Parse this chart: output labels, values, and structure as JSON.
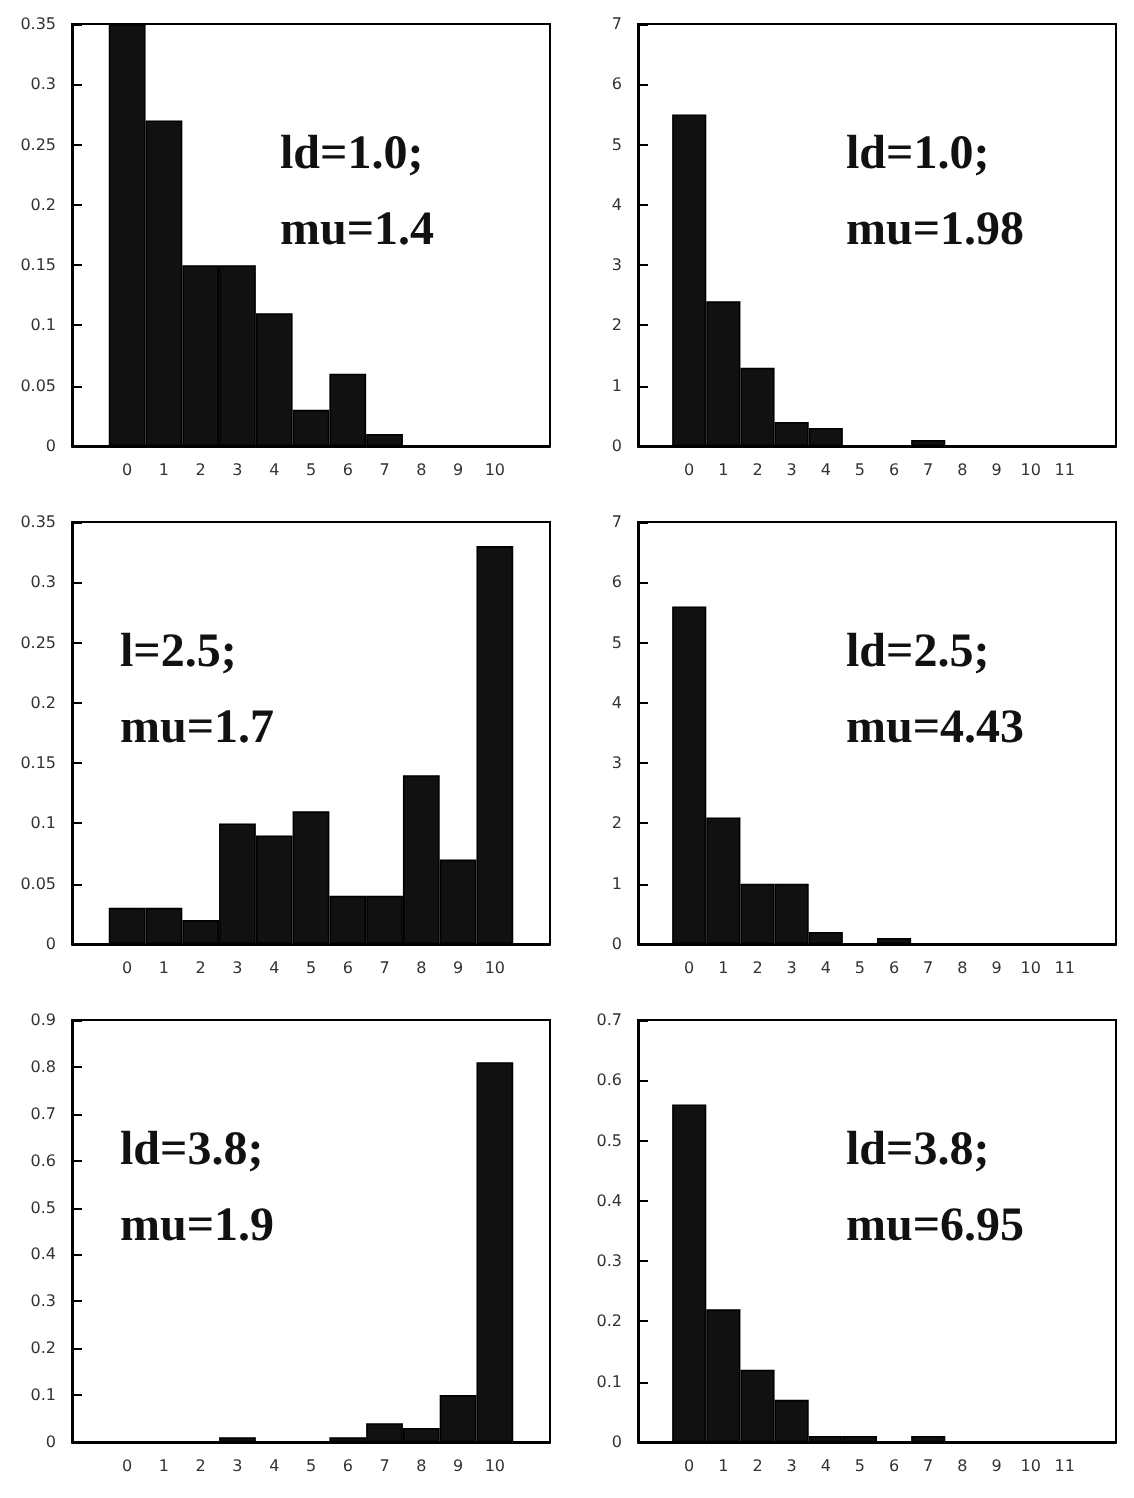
{
  "chart_data": [
    {
      "type": "bar",
      "categories": [
        null,
        "0",
        "1",
        "2",
        "3",
        "4",
        "5",
        "6",
        "7",
        "8",
        "9",
        "10",
        null
      ],
      "values": [
        null,
        0.35,
        0.27,
        0.15,
        0.15,
        0.11,
        0.03,
        0.06,
        0.01,
        0,
        0,
        0,
        null
      ],
      "color": "#111111",
      "ylim": [
        0,
        0.35
      ],
      "yticks": [
        0,
        0.05,
        0.1,
        0.15,
        0.2,
        0.25,
        0.3,
        0.35
      ],
      "grid": false,
      "annotations": [
        "ld=1.0;",
        "mu=1.4"
      ]
    },
    {
      "type": "bar",
      "categories": [
        null,
        "0",
        "1",
        "2",
        "3",
        "4",
        "5",
        "6",
        "7",
        "8",
        "9",
        "10",
        "11",
        null
      ],
      "values": [
        null,
        5.5,
        2.4,
        1.3,
        0.4,
        0.3,
        0,
        0,
        0.1,
        0,
        0,
        0,
        0,
        null
      ],
      "color": "#111111",
      "ylim": [
        0,
        7
      ],
      "yticks": [
        0,
        1,
        2,
        3,
        4,
        5,
        6,
        7
      ],
      "grid": false,
      "annotations": [
        "ld=1.0;",
        "mu=1.98"
      ]
    },
    {
      "type": "bar",
      "categories": [
        null,
        "0",
        "1",
        "2",
        "3",
        "4",
        "5",
        "6",
        "7",
        "8",
        "9",
        "10",
        null
      ],
      "values": [
        null,
        0.03,
        0.03,
        0.02,
        0.1,
        0.09,
        0.11,
        0.04,
        0.04,
        0.14,
        0.07,
        0.33,
        null
      ],
      "color": "#111111",
      "ylim": [
        0,
        0.35
      ],
      "yticks": [
        0,
        0.05,
        0.1,
        0.15,
        0.2,
        0.25,
        0.3,
        0.35
      ],
      "grid": false,
      "annotations": [
        "l=2.5;",
        "mu=1.7"
      ]
    },
    {
      "type": "bar",
      "categories": [
        null,
        "0",
        "1",
        "2",
        "3",
        "4",
        "5",
        "6",
        "7",
        "8",
        "9",
        "10",
        "11",
        null
      ],
      "values": [
        null,
        5.6,
        2.1,
        1.0,
        1.0,
        0.2,
        0,
        0.1,
        0,
        0,
        0,
        0,
        0,
        null
      ],
      "color": "#111111",
      "ylim": [
        0,
        7
      ],
      "yticks": [
        0,
        1,
        2,
        3,
        4,
        5,
        6,
        7
      ],
      "grid": false,
      "annotations": [
        "ld=2.5;",
        "mu=4.43"
      ]
    },
    {
      "type": "bar",
      "categories": [
        null,
        "0",
        "1",
        "2",
        "3",
        "4",
        "5",
        "6",
        "7",
        "8",
        "9",
        "10",
        null
      ],
      "values": [
        null,
        0,
        0,
        0,
        0.01,
        0,
        0,
        0.01,
        0.04,
        0.03,
        0.1,
        0.81,
        null
      ],
      "color": "#111111",
      "ylim": [
        0,
        0.9
      ],
      "yticks": [
        0,
        0.1,
        0.2,
        0.3,
        0.4,
        0.5,
        0.6,
        0.7,
        0.8,
        0.9
      ],
      "grid": false,
      "annotations": [
        "ld=3.8;",
        "mu=1.9"
      ]
    },
    {
      "type": "bar",
      "categories": [
        null,
        "0",
        "1",
        "2",
        "3",
        "4",
        "5",
        "6",
        "7",
        "8",
        "9",
        "10",
        "11",
        null
      ],
      "values": [
        null,
        0.56,
        0.22,
        0.12,
        0.07,
        0.01,
        0.01,
        0,
        0.01,
        0,
        0,
        0,
        0,
        null
      ],
      "color": "#111111",
      "ylim": [
        0,
        0.7
      ],
      "yticks": [
        0,
        0.1,
        0.2,
        0.3,
        0.4,
        0.5,
        0.6,
        0.7
      ],
      "grid": false,
      "annotations": [
        "ld=3.8;",
        "mu=6.95"
      ]
    }
  ]
}
